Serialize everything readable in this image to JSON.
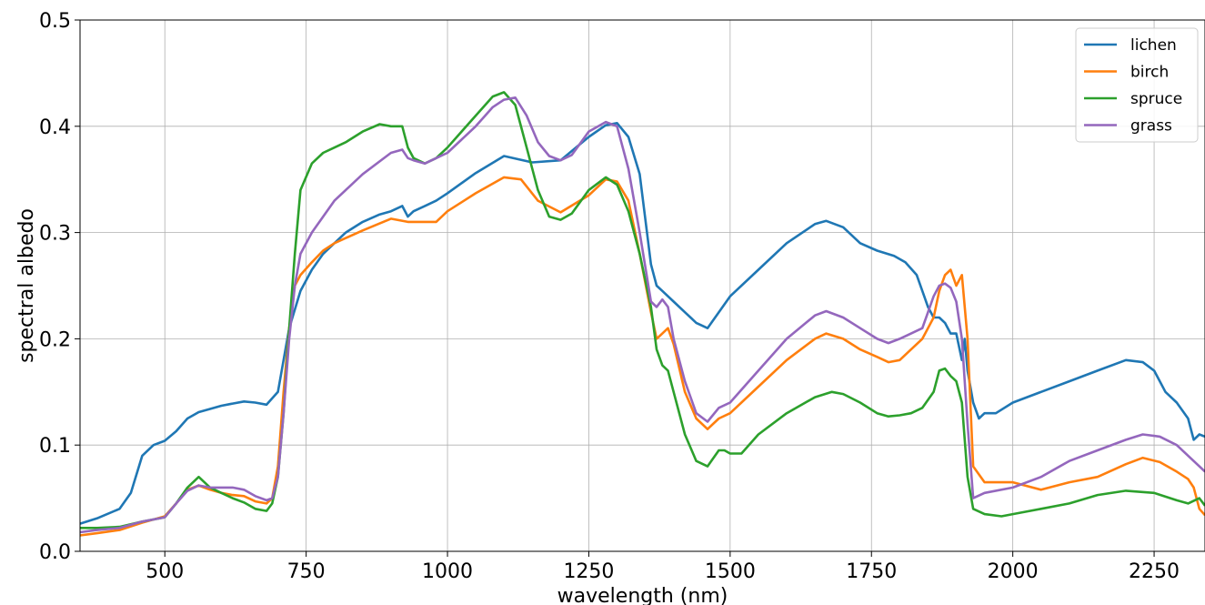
{
  "chart_data": {
    "type": "line",
    "xlabel": "wavelength (nm)",
    "ylabel": "spectral albedo",
    "xlim": [
      350,
      2340
    ],
    "ylim": [
      0,
      0.5
    ],
    "xticks": [
      500,
      750,
      1000,
      1250,
      1500,
      1750,
      2000,
      2250
    ],
    "yticks": [
      0.0,
      0.1,
      0.2,
      0.3,
      0.4,
      0.5
    ],
    "xtick_labels": [
      "500",
      "750",
      "1000",
      "1250",
      "1500",
      "1750",
      "2000",
      "2250"
    ],
    "ytick_labels": [
      "0.0",
      "0.1",
      "0.2",
      "0.3",
      "0.4",
      "0.5"
    ],
    "grid": true,
    "legend_position": "top-right",
    "series": [
      {
        "name": "lichen",
        "color": "#1f77b4",
        "x": [
          350,
          380,
          420,
          440,
          460,
          480,
          500,
          520,
          540,
          560,
          580,
          600,
          620,
          640,
          660,
          680,
          700,
          710,
          720,
          740,
          760,
          780,
          800,
          820,
          850,
          880,
          900,
          920,
          930,
          940,
          960,
          980,
          1000,
          1050,
          1100,
          1150,
          1200,
          1250,
          1280,
          1300,
          1320,
          1340,
          1360,
          1370,
          1380,
          1400,
          1420,
          1440,
          1460,
          1480,
          1500,
          1550,
          1600,
          1650,
          1670,
          1700,
          1730,
          1760,
          1790,
          1810,
          1830,
          1850,
          1860,
          1870,
          1880,
          1890,
          1900,
          1910,
          1915,
          1920,
          1930,
          1940,
          1950,
          1970,
          2000,
          2050,
          2100,
          2150,
          2200,
          2230,
          2250,
          2270,
          2290,
          2310,
          2320,
          2330,
          2340
        ],
        "y": [
          0.026,
          0.031,
          0.04,
          0.055,
          0.09,
          0.1,
          0.104,
          0.113,
          0.125,
          0.131,
          0.134,
          0.137,
          0.139,
          0.141,
          0.14,
          0.138,
          0.15,
          0.18,
          0.21,
          0.245,
          0.265,
          0.28,
          0.29,
          0.3,
          0.31,
          0.317,
          0.32,
          0.325,
          0.315,
          0.32,
          0.325,
          0.33,
          0.337,
          0.356,
          0.372,
          0.366,
          0.368,
          0.39,
          0.401,
          0.403,
          0.39,
          0.355,
          0.27,
          0.25,
          0.245,
          0.235,
          0.225,
          0.215,
          0.21,
          0.225,
          0.24,
          0.265,
          0.29,
          0.308,
          0.311,
          0.305,
          0.29,
          0.283,
          0.278,
          0.272,
          0.26,
          0.23,
          0.22,
          0.22,
          0.215,
          0.205,
          0.205,
          0.18,
          0.2,
          0.17,
          0.14,
          0.125,
          0.13,
          0.13,
          0.14,
          0.15,
          0.16,
          0.17,
          0.18,
          0.178,
          0.17,
          0.15,
          0.14,
          0.125,
          0.105,
          0.11,
          0.108
        ]
      },
      {
        "name": "birch",
        "color": "#ff7f0e",
        "x": [
          350,
          380,
          420,
          460,
          500,
          520,
          540,
          560,
          580,
          600,
          620,
          640,
          660,
          680,
          690,
          700,
          710,
          720,
          730,
          740,
          760,
          780,
          800,
          850,
          900,
          930,
          950,
          980,
          1000,
          1050,
          1100,
          1130,
          1160,
          1200,
          1250,
          1280,
          1300,
          1320,
          1340,
          1360,
          1370,
          1380,
          1390,
          1400,
          1420,
          1440,
          1460,
          1480,
          1500,
          1550,
          1600,
          1650,
          1670,
          1700,
          1730,
          1760,
          1780,
          1800,
          1820,
          1840,
          1860,
          1870,
          1880,
          1890,
          1900,
          1910,
          1920,
          1930,
          1950,
          2000,
          2050,
          2100,
          2150,
          2200,
          2230,
          2260,
          2290,
          2310,
          2320,
          2330,
          2340
        ],
        "y": [
          0.015,
          0.017,
          0.02,
          0.027,
          0.033,
          0.045,
          0.058,
          0.062,
          0.058,
          0.055,
          0.053,
          0.052,
          0.047,
          0.045,
          0.05,
          0.08,
          0.15,
          0.21,
          0.25,
          0.26,
          0.272,
          0.283,
          0.29,
          0.302,
          0.313,
          0.31,
          0.31,
          0.31,
          0.32,
          0.337,
          0.352,
          0.35,
          0.33,
          0.319,
          0.335,
          0.35,
          0.348,
          0.33,
          0.28,
          0.225,
          0.2,
          0.205,
          0.21,
          0.195,
          0.15,
          0.125,
          0.115,
          0.125,
          0.13,
          0.155,
          0.18,
          0.2,
          0.205,
          0.2,
          0.19,
          0.183,
          0.178,
          0.18,
          0.19,
          0.2,
          0.22,
          0.245,
          0.26,
          0.265,
          0.25,
          0.26,
          0.2,
          0.08,
          0.065,
          0.065,
          0.058,
          0.065,
          0.07,
          0.082,
          0.088,
          0.084,
          0.075,
          0.068,
          0.06,
          0.04,
          0.034
        ]
      },
      {
        "name": "spruce",
        "color": "#2ca02c",
        "x": [
          350,
          380,
          420,
          460,
          500,
          520,
          540,
          560,
          580,
          600,
          620,
          640,
          660,
          680,
          690,
          700,
          710,
          720,
          730,
          740,
          760,
          780,
          800,
          820,
          850,
          880,
          900,
          910,
          920,
          930,
          940,
          960,
          980,
          1000,
          1050,
          1080,
          1100,
          1120,
          1140,
          1160,
          1180,
          1200,
          1220,
          1250,
          1280,
          1300,
          1320,
          1340,
          1360,
          1370,
          1380,
          1390,
          1400,
          1420,
          1440,
          1460,
          1480,
          1490,
          1500,
          1520,
          1550,
          1600,
          1650,
          1680,
          1700,
          1730,
          1760,
          1780,
          1800,
          1820,
          1840,
          1860,
          1870,
          1880,
          1890,
          1900,
          1910,
          1920,
          1930,
          1950,
          1980,
          2000,
          2050,
          2100,
          2150,
          2200,
          2250,
          2290,
          2310,
          2330,
          2340
        ],
        "y": [
          0.022,
          0.022,
          0.023,
          0.028,
          0.032,
          0.045,
          0.06,
          0.07,
          0.06,
          0.055,
          0.05,
          0.046,
          0.04,
          0.038,
          0.045,
          0.07,
          0.13,
          0.21,
          0.28,
          0.34,
          0.365,
          0.375,
          0.38,
          0.385,
          0.395,
          0.402,
          0.4,
          0.4,
          0.4,
          0.38,
          0.37,
          0.365,
          0.37,
          0.38,
          0.41,
          0.428,
          0.432,
          0.42,
          0.38,
          0.34,
          0.315,
          0.312,
          0.318,
          0.34,
          0.352,
          0.345,
          0.32,
          0.28,
          0.23,
          0.19,
          0.175,
          0.17,
          0.15,
          0.11,
          0.085,
          0.08,
          0.095,
          0.095,
          0.092,
          0.092,
          0.11,
          0.13,
          0.145,
          0.15,
          0.148,
          0.14,
          0.13,
          0.127,
          0.128,
          0.13,
          0.135,
          0.15,
          0.17,
          0.172,
          0.165,
          0.16,
          0.14,
          0.07,
          0.04,
          0.035,
          0.033,
          0.035,
          0.04,
          0.045,
          0.053,
          0.057,
          0.055,
          0.048,
          0.045,
          0.05,
          0.043
        ]
      },
      {
        "name": "grass",
        "color": "#9467bd",
        "x": [
          350,
          380,
          420,
          460,
          500,
          520,
          540,
          560,
          580,
          600,
          620,
          640,
          660,
          680,
          690,
          700,
          710,
          720,
          730,
          740,
          760,
          780,
          800,
          850,
          900,
          920,
          930,
          940,
          960,
          980,
          1000,
          1050,
          1080,
          1100,
          1120,
          1140,
          1160,
          1180,
          1200,
          1220,
          1250,
          1280,
          1300,
          1320,
          1340,
          1360,
          1370,
          1380,
          1390,
          1400,
          1420,
          1440,
          1460,
          1480,
          1500,
          1550,
          1600,
          1650,
          1670,
          1700,
          1730,
          1760,
          1780,
          1800,
          1820,
          1840,
          1860,
          1870,
          1880,
          1890,
          1900,
          1910,
          1920,
          1930,
          1950,
          2000,
          2050,
          2100,
          2150,
          2200,
          2230,
          2260,
          2290,
          2310,
          2330,
          2340
        ],
        "y": [
          0.018,
          0.02,
          0.022,
          0.028,
          0.032,
          0.045,
          0.057,
          0.062,
          0.06,
          0.06,
          0.06,
          0.058,
          0.052,
          0.048,
          0.05,
          0.07,
          0.13,
          0.2,
          0.25,
          0.28,
          0.3,
          0.315,
          0.33,
          0.355,
          0.375,
          0.378,
          0.37,
          0.368,
          0.365,
          0.37,
          0.375,
          0.4,
          0.418,
          0.425,
          0.427,
          0.41,
          0.385,
          0.372,
          0.368,
          0.373,
          0.395,
          0.404,
          0.4,
          0.36,
          0.3,
          0.235,
          0.23,
          0.237,
          0.23,
          0.2,
          0.16,
          0.13,
          0.122,
          0.135,
          0.14,
          0.17,
          0.2,
          0.222,
          0.226,
          0.22,
          0.21,
          0.2,
          0.196,
          0.2,
          0.205,
          0.21,
          0.24,
          0.25,
          0.252,
          0.248,
          0.235,
          0.2,
          0.12,
          0.05,
          0.055,
          0.06,
          0.07,
          0.085,
          0.095,
          0.105,
          0.11,
          0.108,
          0.1,
          0.09,
          0.08,
          0.075
        ]
      }
    ]
  }
}
